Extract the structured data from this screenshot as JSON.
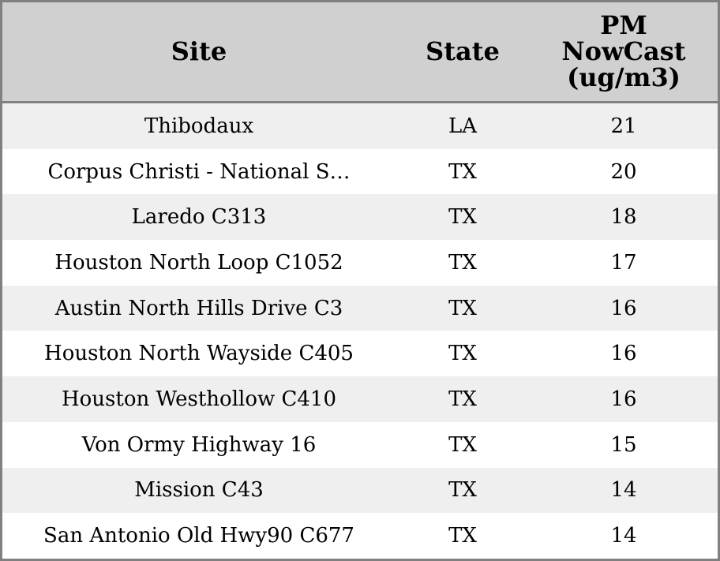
{
  "table": {
    "columns": [
      "Site",
      "State",
      "PM NowCast (ug/m3)"
    ],
    "rows": [
      [
        "Thibodaux",
        "LA",
        21
      ],
      [
        "Corpus Christi - National S…",
        "TX",
        20
      ],
      [
        "Laredo C313",
        "TX",
        18
      ],
      [
        "Houston North Loop C1052",
        "TX",
        17
      ],
      [
        "Austin North Hills Drive C3",
        "TX",
        16
      ],
      [
        "Houston North Wayside C405",
        "TX",
        16
      ],
      [
        "Houston Westhollow C410",
        "TX",
        16
      ],
      [
        "Von Ormy Highway 16",
        "TX",
        15
      ],
      [
        "Mission C43",
        "TX",
        14
      ],
      [
        "San Antonio Old Hwy90 C677",
        "TX",
        14
      ]
    ]
  }
}
